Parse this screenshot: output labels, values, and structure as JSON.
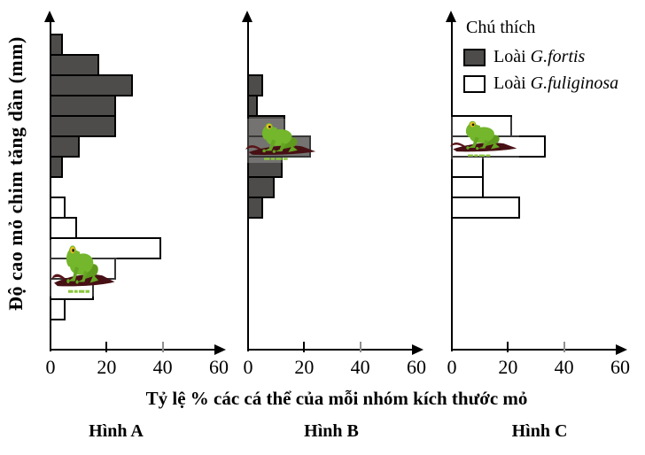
{
  "figure": {
    "y_axis_label": "Độ cao mỏ chim tăng dần (mm)",
    "x_axis_label": "Tỷ lệ % các cá thể của mỗi nhóm kích thước mỏ"
  },
  "legend": {
    "title": "Chú thích",
    "position": "top-right, above chart C",
    "items": [
      {
        "prefix": "Loài",
        "species": "G.fortis",
        "swatch_color": "#4d4c4a"
      },
      {
        "prefix": "Loài",
        "species": "G.fuliginosa",
        "swatch_color": "#ffffff"
      }
    ]
  },
  "colors": {
    "fortis_fill": "#4d4c4a",
    "fuliginosa_fill": "#ffffff",
    "bar_border": "#000000",
    "axis": "#000000"
  },
  "chart_data": [
    {
      "id": "A",
      "caption": "Hình A",
      "type": "bar",
      "orientation": "horizontal",
      "xlim": [
        0,
        60
      ],
      "x_ticks": [
        0,
        20,
        40,
        60
      ],
      "y_axis": "beak-size classes, 14 rows, size increasing upward, no numeric labels",
      "watermark": "frog-on-branch-logo",
      "series": [
        {
          "name": "G.fortis",
          "fill": "#4d4c4a",
          "start_row": 0,
          "values_pct": [
            4,
            17,
            29,
            23,
            23,
            10,
            4
          ]
        },
        {
          "name": "G.fuliginosa",
          "fill": "#ffffff",
          "start_row": 8,
          "values_pct": [
            5,
            9,
            39,
            23,
            15,
            5
          ]
        }
      ]
    },
    {
      "id": "B",
      "caption": "Hình B",
      "type": "bar",
      "orientation": "horizontal",
      "xlim": [
        0,
        60
      ],
      "x_ticks": [
        0,
        20,
        40,
        60
      ],
      "y_axis": "beak-size classes, same scale as A, no numeric labels",
      "watermark": "frog-on-branch-logo",
      "series": [
        {
          "name": "G.fortis",
          "fill": "#4d4c4a",
          "start_row": 2,
          "values_pct": [
            5,
            3,
            13,
            22,
            12,
            9,
            5
          ]
        }
      ]
    },
    {
      "id": "C",
      "caption": "Hình C",
      "type": "bar",
      "orientation": "horizontal",
      "xlim": [
        0,
        60
      ],
      "x_ticks": [
        0,
        20,
        40,
        60
      ],
      "y_axis": "beak-size classes, same scale as A, no numeric labels",
      "watermark": "frog-on-branch-logo",
      "series": [
        {
          "name": "G.fuliginosa",
          "fill": "#ffffff",
          "start_row": 4,
          "values_pct": [
            21,
            33,
            11,
            11,
            24
          ]
        }
      ]
    }
  ]
}
